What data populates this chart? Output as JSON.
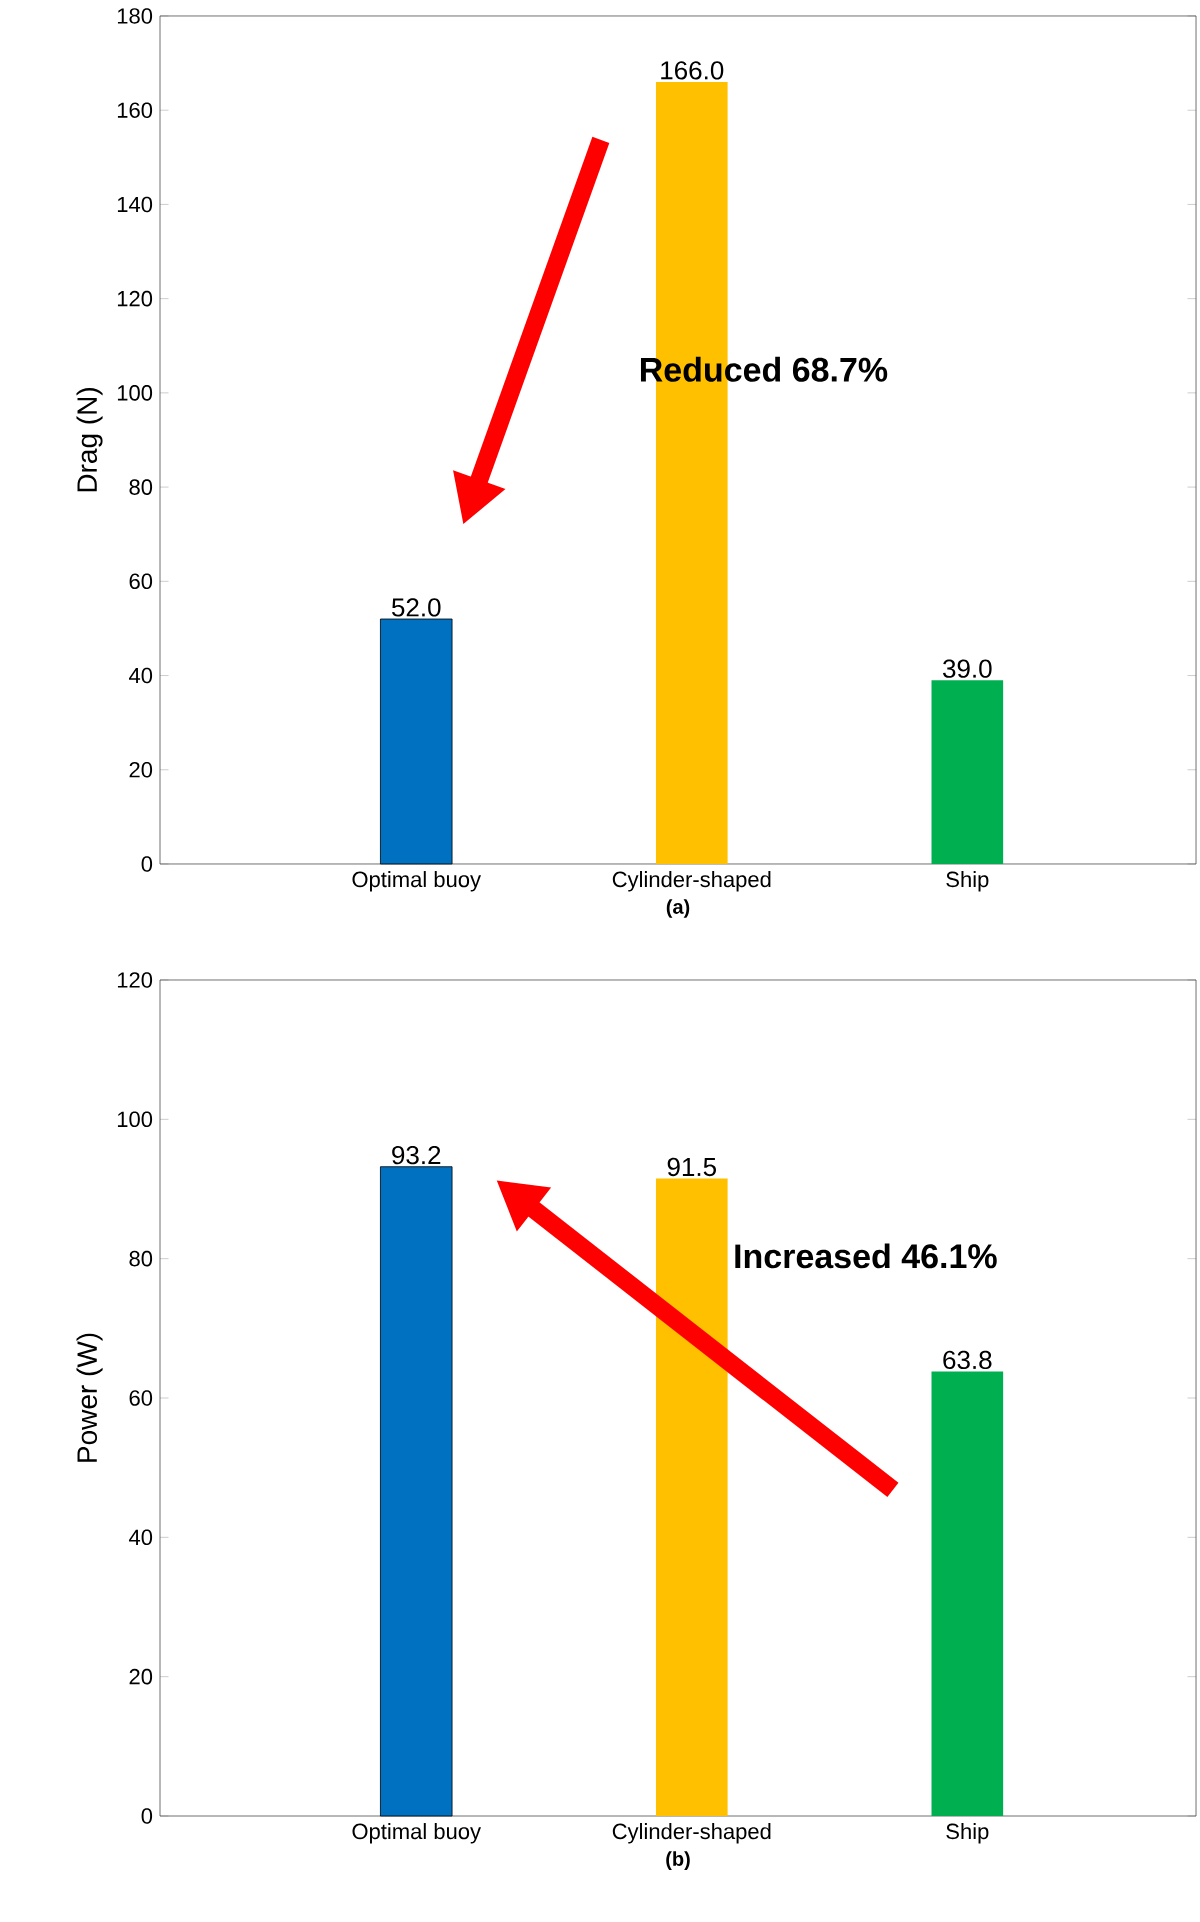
{
  "chart_data": [
    {
      "type": "bar",
      "xlabel": "(a)",
      "ylabel": "Drag (N)",
      "categories": [
        "Optimal buoy",
        "Cylinder-shaped",
        "Ship"
      ],
      "values": [
        52,
        166,
        39
      ],
      "colors": [
        "#0070c0",
        "#ffc000",
        "#00b050"
      ],
      "value_labels": [
        "52.0",
        "166.0",
        "39.0"
      ],
      "ylim": [
        0,
        180
      ],
      "yticks": [
        0,
        20,
        40,
        60,
        80,
        100,
        120,
        140,
        160,
        180
      ],
      "annotations": [
        "Reduced 68.7%"
      ]
    },
    {
      "type": "bar",
      "xlabel": "(b)",
      "ylabel": "Power (W)",
      "categories": [
        "Optimal buoy",
        "Cylinder-shaped",
        "Ship"
      ],
      "values": [
        93.2,
        91.5,
        63.8
      ],
      "colors": [
        "#0070c0",
        "#ffc000",
        "#00b050"
      ],
      "value_labels": [
        "93.2",
        "91.5",
        "63.8"
      ],
      "ylim": [
        0,
        120
      ],
      "yticks": [
        0,
        20,
        40,
        60,
        80,
        100,
        120
      ],
      "annotations": [
        "Increased 46.1%"
      ]
    }
  ]
}
